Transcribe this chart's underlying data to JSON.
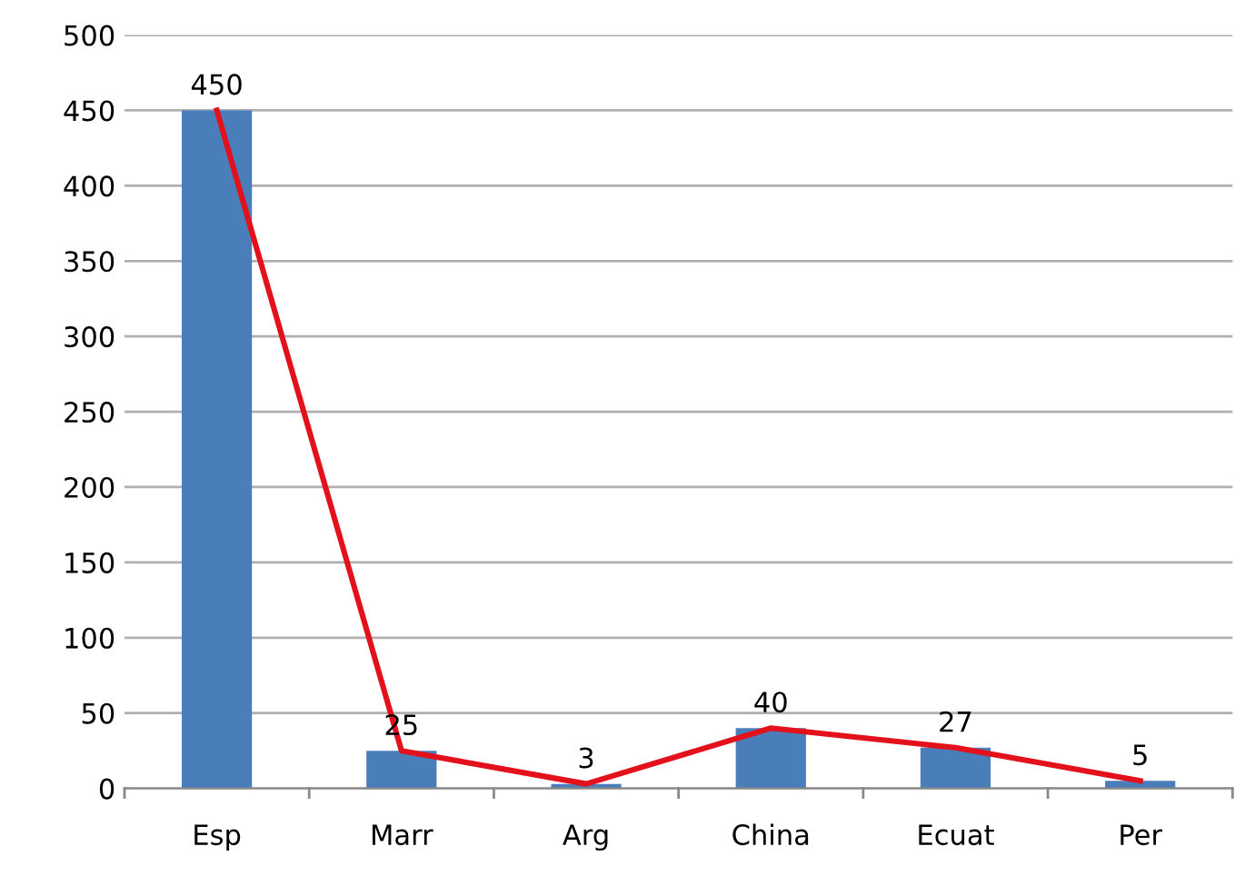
{
  "chart_data": {
    "type": "bar",
    "categories": [
      "Esp",
      "Marr",
      "Arg",
      "China",
      "Ecuat",
      "Per"
    ],
    "series": [
      {
        "color": "#4a7ebb",
        "values": [
          450,
          25,
          3,
          40,
          27,
          5
        ],
        "value_labels": [
          "450",
          "25",
          "3",
          "40",
          "27",
          "5"
        ]
      },
      {
        "type": "line",
        "color": "#e3111b",
        "values": [
          450,
          25,
          3,
          40,
          27,
          5
        ]
      }
    ],
    "ylim": [
      0,
      500
    ],
    "yticks": [
      0,
      50,
      100,
      150,
      200,
      250,
      300,
      350,
      400,
      450,
      500
    ],
    "grid": "y",
    "legend": false,
    "marker": "none",
    "line_style": "solid"
  }
}
